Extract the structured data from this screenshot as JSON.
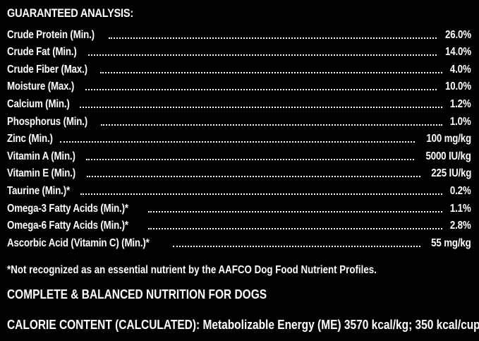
{
  "analysis": {
    "heading": "GUARANTEED ANALYSIS:",
    "rows": [
      {
        "label": "Crude Protein (Min.)",
        "value": "26.0%"
      },
      {
        "label": "Crude Fat (Min.)",
        "value": "14.0%"
      },
      {
        "label": "Crude Fiber (Max.)",
        "value": "4.0%"
      },
      {
        "label": "Moisture (Max.)",
        "value": "10.0%"
      },
      {
        "label": "Calcium (Min.)",
        "value": "1.2%"
      },
      {
        "label": "Phosphorus (Min.)",
        "value": "1.0%"
      },
      {
        "label": "Zinc (Min.)",
        "value": "100 mg/kg"
      },
      {
        "label": "Vitamin A (Min.)",
        "value": "5000 IU/kg"
      },
      {
        "label": "Vitamin E (Min.)",
        "value": "225 IU/kg"
      },
      {
        "label": "Taurine (Min.)*",
        "value": "0.2%"
      },
      {
        "label": "Omega-3 Fatty Acids (Min.)*",
        "value": "1.1%"
      },
      {
        "label": "Omega-6 Fatty Acids (Min.)*",
        "value": "2.8%"
      },
      {
        "label": "Ascorbic Acid (Vitamin C) (Min.)*",
        "value": "55 mg/kg"
      }
    ],
    "footnote": "*Not recognized as an essential nutrient by the AAFCO Dog Food Nutrient Profiles.",
    "statement": "COMPLETE & BALANCED NUTRITION FOR DOGS",
    "calorie": "CALORIE CONTENT (CALCULATED): Metabolizable Energy (ME) 3570 kcal/kg; 350 kcal/cup"
  },
  "colors": {
    "background": "#000000",
    "text": "#ffffff"
  }
}
